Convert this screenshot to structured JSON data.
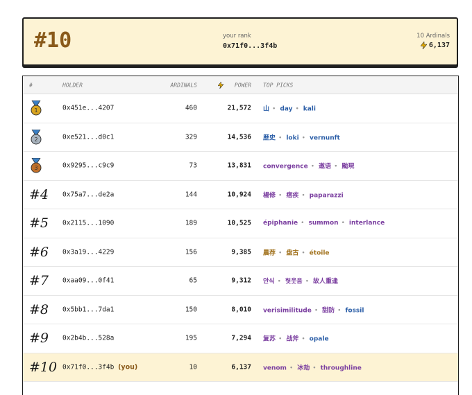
{
  "header": {
    "rank": "#10",
    "rank_label": "your rank",
    "address": "0x71f0...3f4b",
    "ardinals": "10 Ardinals",
    "power": "6,137"
  },
  "table": {
    "columns": [
      "#",
      "HOLDER",
      "ARDINALS",
      "POWER",
      "TOP PICKS"
    ],
    "rows": [
      {
        "rank": "1",
        "medal": "#d9a520",
        "holder": "0x451e...4207",
        "ardinals": "460",
        "power": "21,572",
        "picks": [
          {
            "text": "山",
            "color": "#2b5ea7"
          },
          {
            "text": "day",
            "color": "#2b5ea7"
          },
          {
            "text": "kali",
            "color": "#2b5ea7"
          }
        ]
      },
      {
        "rank": "2",
        "medal": "#a9b4bf",
        "holder": "0xe521...d0c1",
        "ardinals": "329",
        "power": "14,536",
        "picks": [
          {
            "text": "歴史",
            "color": "#2b5ea7"
          },
          {
            "text": "loki",
            "color": "#2b5ea7"
          },
          {
            "text": "vernunft",
            "color": "#2b5ea7"
          }
        ]
      },
      {
        "rank": "3",
        "medal": "#c0702a",
        "holder": "0x9295...c9c9",
        "ardinals": "73",
        "power": "13,831",
        "picks": [
          {
            "text": "convergence",
            "color": "#7b3fa0"
          },
          {
            "text": "邀语",
            "color": "#7b3fa0"
          },
          {
            "text": "颱現",
            "color": "#7b3fa0"
          }
        ]
      },
      {
        "rank": "#4",
        "holder": "0x75a7...de2a",
        "ardinals": "144",
        "power": "10,924",
        "picks": [
          {
            "text": "楊修",
            "color": "#7b3fa0"
          },
          {
            "text": "痞疾",
            "color": "#7b3fa0"
          },
          {
            "text": "paparazzi",
            "color": "#7b3fa0"
          }
        ]
      },
      {
        "rank": "#5",
        "holder": "0x2115...1090",
        "ardinals": "189",
        "power": "10,525",
        "picks": [
          {
            "text": "épiphanie",
            "color": "#7b3fa0"
          },
          {
            "text": "summon",
            "color": "#7b3fa0"
          },
          {
            "text": "interlance",
            "color": "#7b3fa0"
          }
        ]
      },
      {
        "rank": "#6",
        "holder": "0x3a19...4229",
        "ardinals": "156",
        "power": "9,385",
        "picks": [
          {
            "text": "晨荐",
            "color": "#a0701a"
          },
          {
            "text": "盘古",
            "color": "#a0701a"
          },
          {
            "text": "étoile",
            "color": "#a0701a"
          }
        ]
      },
      {
        "rank": "#7",
        "holder": "0xaa09...0f41",
        "ardinals": "65",
        "power": "9,312",
        "picks": [
          {
            "text": "안식",
            "color": "#7b3fa0"
          },
          {
            "text": "헛웃음",
            "color": "#7b3fa0"
          },
          {
            "text": "故人重逢",
            "color": "#7b3fa0"
          }
        ]
      },
      {
        "rank": "#8",
        "holder": "0x5bb1...7da1",
        "ardinals": "150",
        "power": "8,010",
        "picks": [
          {
            "text": "verisimilitude",
            "color": "#7b3fa0"
          },
          {
            "text": "甜防",
            "color": "#7b3fa0"
          },
          {
            "text": "fossil",
            "color": "#2b5ea7"
          }
        ]
      },
      {
        "rank": "#9",
        "holder": "0x2b4b...528a",
        "ardinals": "195",
        "power": "7,294",
        "picks": [
          {
            "text": "复苏",
            "color": "#7b3fa0"
          },
          {
            "text": "战斧",
            "color": "#7b3fa0"
          },
          {
            "text": "opale",
            "color": "#2b5ea7"
          }
        ]
      },
      {
        "rank": "#10",
        "holder": "0x71f0...3f4b",
        "you": "(you)",
        "ardinals": "10",
        "power": "6,137",
        "picks": [
          {
            "text": "venom",
            "color": "#7b3fa0"
          },
          {
            "text": "冰劫",
            "color": "#7b3fa0"
          },
          {
            "text": "throughline",
            "color": "#7b3fa0"
          }
        ]
      }
    ]
  }
}
